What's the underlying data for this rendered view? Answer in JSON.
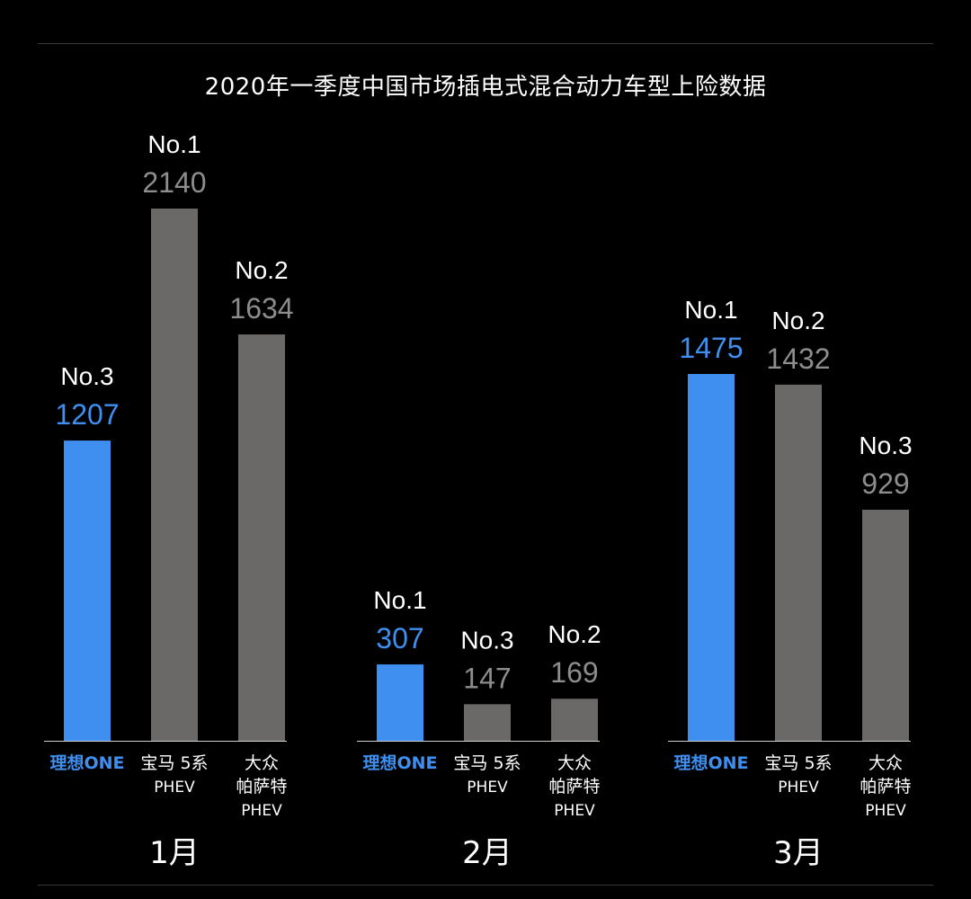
{
  "title": "2020年一季度中国市场插电式混合动力车型上险数据",
  "chart_data": {
    "type": "bar",
    "title": "2020年一季度中国市场插电式混合动力车型上险数据",
    "colors": {
      "highlight": "#3f8ff0",
      "other": "#6b6868"
    },
    "groups": [
      {
        "month": "1月",
        "bars": [
          {
            "label": [
              "理想ONE"
            ],
            "value": 1207,
            "rank": "No.3",
            "highlight": true
          },
          {
            "label": [
              "宝马 5系",
              "PHEV"
            ],
            "value": 2140,
            "rank": "No.1",
            "highlight": false
          },
          {
            "label": [
              "大众",
              "帕萨特",
              "PHEV"
            ],
            "value": 1634,
            "rank": "No.2",
            "highlight": false
          }
        ]
      },
      {
        "month": "2月",
        "bars": [
          {
            "label": [
              "理想ONE"
            ],
            "value": 307,
            "rank": "No.1",
            "highlight": true
          },
          {
            "label": [
              "宝马 5系",
              "PHEV"
            ],
            "value": 147,
            "rank": "No.3",
            "highlight": false
          },
          {
            "label": [
              "大众",
              "帕萨特",
              "PHEV"
            ],
            "value": 169,
            "rank": "No.2",
            "highlight": false
          }
        ]
      },
      {
        "month": "3月",
        "bars": [
          {
            "label": [
              "理想ONE"
            ],
            "value": 1475,
            "rank": "No.1",
            "highlight": true
          },
          {
            "label": [
              "宝马 5系",
              "PHEV"
            ],
            "value": 1432,
            "rank": "No.2",
            "highlight": false
          },
          {
            "label": [
              "大众",
              "帕萨特",
              "PHEV"
            ],
            "value": 929,
            "rank": "No.3",
            "highlight": false
          }
        ]
      }
    ]
  }
}
